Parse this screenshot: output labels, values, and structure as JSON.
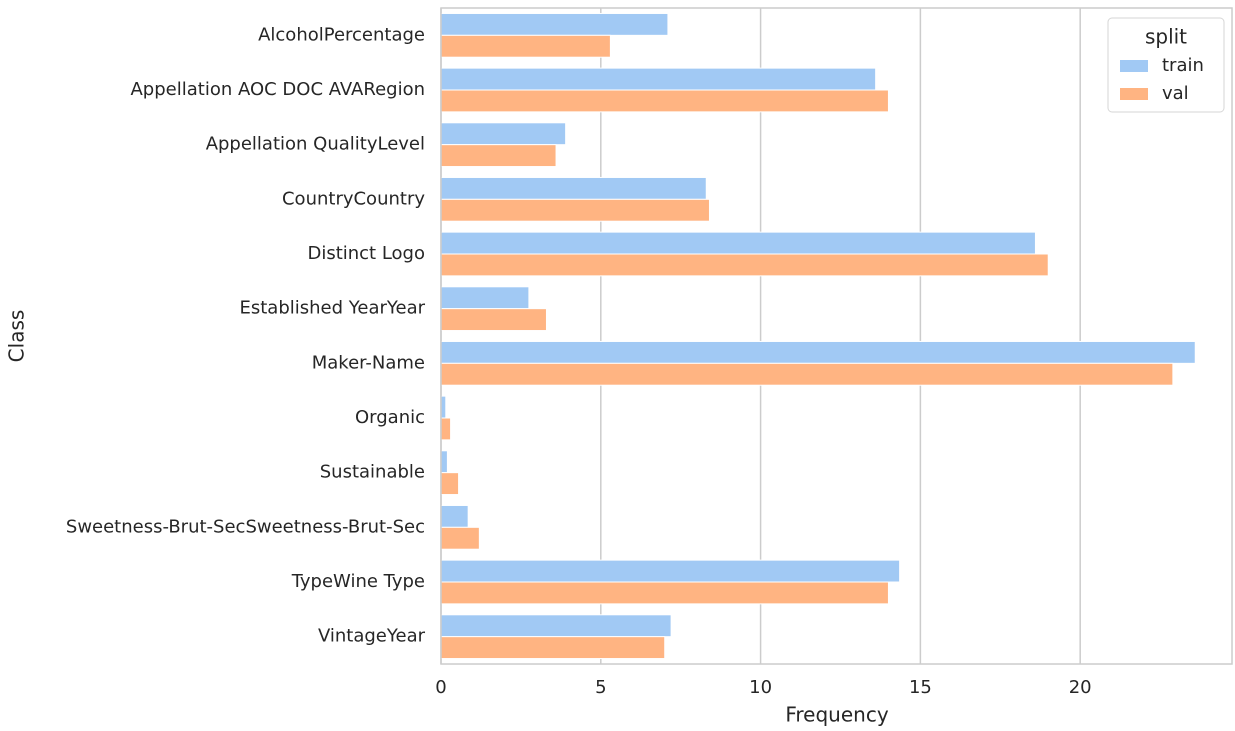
{
  "chart_data": {
    "type": "barh",
    "xlabel": "Frequency",
    "ylabel": "Class",
    "categories": [
      "AlcoholPercentage",
      "Appellation AOC DOC AVARegion",
      "Appellation QualityLevel",
      "CountryCountry",
      "Distinct Logo",
      "Established YearYear",
      "Maker-Name",
      "Organic",
      "Sustainable",
      "Sweetness-Brut-SecSweetness-Brut-Sec",
      "TypeWine Type",
      "VintageYear"
    ],
    "series": [
      {
        "name": "train",
        "color": "#a1c9f4",
        "values": [
          7.1,
          13.6,
          3.9,
          8.3,
          18.6,
          2.75,
          23.6,
          0.15,
          0.2,
          0.85,
          14.35,
          7.2
        ]
      },
      {
        "name": "val",
        "color": "#ffb482",
        "values": [
          5.3,
          14.0,
          3.6,
          8.4,
          19.0,
          3.3,
          22.9,
          0.3,
          0.55,
          1.2,
          14.0,
          7.0
        ]
      }
    ],
    "xlim": [
      0,
      24.75
    ],
    "xticks": [
      0,
      5,
      10,
      15,
      20
    ],
    "grid": true,
    "legend_title": "split",
    "legend": "upper right"
  }
}
